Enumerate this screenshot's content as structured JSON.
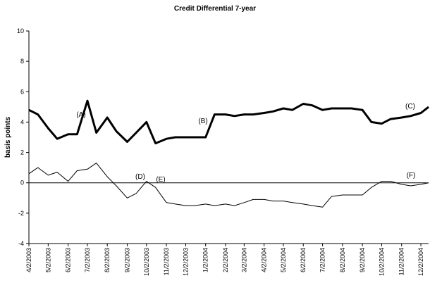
{
  "chart_data": {
    "type": "line",
    "title": "Credit Differential 7-year",
    "y_label": "basis points",
    "x": [
      "4/2/2003",
      "4/16/2003",
      "5/2/2003",
      "5/16/2003",
      "6/2/2003",
      "6/16/2003",
      "7/2/2003",
      "7/16/2003",
      "8/2/2003",
      "8/16/2003",
      "9/2/2003",
      "9/16/2003",
      "10/2/2003",
      "10/16/2003",
      "11/2/2003",
      "11/16/2003",
      "12/2/2003",
      "12/16/2003",
      "1/2/2004",
      "1/16/2004",
      "2/2/2004",
      "2/16/2004",
      "3/2/2004",
      "3/16/2004",
      "4/2/2004",
      "4/16/2004",
      "5/2/2004",
      "5/16/2004",
      "6/2/2004",
      "6/16/2004",
      "7/2/2004",
      "7/16/2004",
      "8/2/2004",
      "8/16/2004",
      "9/2/2004",
      "9/16/2004",
      "10/2/2004",
      "10/16/2004",
      "11/2/2004",
      "11/16/2004",
      "12/2/2004",
      "12/14/2004"
    ],
    "series": [
      {
        "color": "#000000",
        "width": 3,
        "values": [
          4.8,
          4.5,
          3.6,
          2.9,
          3.2,
          3.2,
          5.4,
          3.3,
          4.3,
          3.4,
          2.7,
          3.3,
          4.0,
          2.6,
          2.9,
          3.0,
          3.0,
          3.0,
          3.0,
          4.5,
          4.5,
          4.4,
          4.5,
          4.5,
          4.6,
          4.7,
          4.9,
          4.8,
          5.2,
          5.1,
          4.8,
          4.9,
          4.9,
          4.9,
          4.8,
          4.0,
          3.9,
          4.2,
          4.3,
          4.4,
          4.6,
          5.0
        ]
      },
      {
        "color": "#000000",
        "width": 1,
        "values": [
          0.6,
          1.0,
          0.5,
          0.7,
          0.1,
          0.8,
          0.9,
          1.3,
          0.4,
          -0.2,
          -1.0,
          -0.7,
          0.1,
          -0.3,
          -1.3,
          -1.4,
          -1.5,
          -1.5,
          -1.4,
          -1.5,
          -1.4,
          -1.5,
          -1.3,
          -1.1,
          -1.1,
          -1.2,
          -1.2,
          -1.3,
          -1.4,
          -1.5,
          -1.6,
          -0.9,
          -0.8,
          -0.8,
          -0.8,
          -0.3,
          0.1,
          0.1,
          -0.1,
          -0.2,
          -0.1,
          0.0
        ]
      }
    ],
    "annotations": [
      "(A)",
      "(B)",
      "(C)",
      "(D)",
      "(E)",
      "(F)"
    ],
    "xlim": [
      "4/2/2003",
      "12/14/2004"
    ],
    "xticks": [
      "4/2/2003",
      "5/2/2003",
      "6/2/2003",
      "7/2/2003",
      "8/2/2003",
      "9/2/2003",
      "10/2/2003",
      "11/2/2003",
      "12/2/2003",
      "1/2/2004",
      "2/2/2004",
      "3/2/2004",
      "4/2/2004",
      "5/2/2004",
      "6/2/2004",
      "7/2/2004",
      "8/2/2004",
      "9/2/2004",
      "10/2/2004",
      "11/2/2004",
      "12/2/2004"
    ],
    "ylim": [
      -4,
      10
    ],
    "yticks": [
      -4,
      -2,
      0,
      2,
      4,
      6,
      8,
      10
    ],
    "zero_line": true,
    "grid": false
  }
}
